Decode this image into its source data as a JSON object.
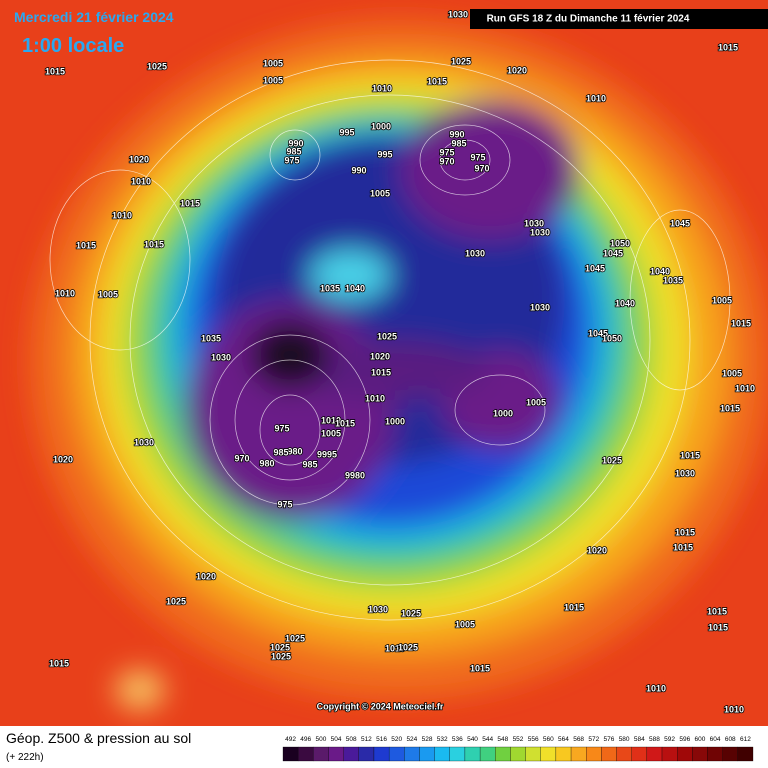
{
  "header": {
    "date": "Mercredi 21 février 2024",
    "time": "1:00 locale",
    "run": "Run GFS 18 Z du Dimanche 11 février 2024"
  },
  "map": {
    "labels": [
      "1030",
      "1015",
      "1015",
      "1025",
      "1005",
      "1005",
      "1025",
      "1020",
      "1015",
      "1010",
      "1010",
      "1000",
      "995",
      "990",
      "985",
      "975",
      "970",
      "975",
      "970",
      "990",
      "985",
      "975",
      "995",
      "990",
      "1020",
      "1010",
      "1015",
      "1005",
      "1010",
      "1030",
      "1030",
      "1045",
      "1015",
      "1015",
      "1030",
      "1050",
      "1045",
      "1045",
      "1040",
      "1035",
      "1010",
      "1005",
      "1035",
      "1040",
      "1030",
      "1040",
      "1005",
      "1015",
      "1045",
      "1050",
      "1035",
      "1030",
      "1025",
      "1020",
      "1015",
      "1010",
      "1005",
      "1000",
      "1000",
      "1005",
      "1010",
      "1015",
      "1010",
      "1015",
      "975",
      "1005",
      "1030",
      "980",
      "985",
      "970",
      "980",
      "9995",
      "985",
      "9980",
      "1020",
      "1025",
      "1015",
      "1030",
      "975",
      "1015",
      "1015",
      "1020",
      "1020",
      "1025",
      "1030",
      "1025",
      "1015",
      "1015",
      "1015",
      "1005",
      "1025",
      "1025",
      "1025",
      "1010",
      "1025",
      "1015",
      "1015",
      "1010",
      "1010"
    ]
  },
  "copyright": "Copyright © 2024 Meteociel.fr",
  "footer": {
    "title": "Géop. Z500 & pression au sol",
    "lead": "(+ 222h)"
  },
  "colorbar": {
    "ticks": [
      492,
      496,
      500,
      504,
      508,
      512,
      516,
      520,
      524,
      528,
      532,
      536,
      540,
      544,
      548,
      552,
      556,
      560,
      564,
      568,
      572,
      576,
      580,
      584,
      588,
      592,
      596,
      600,
      604,
      608,
      612
    ]
  }
}
